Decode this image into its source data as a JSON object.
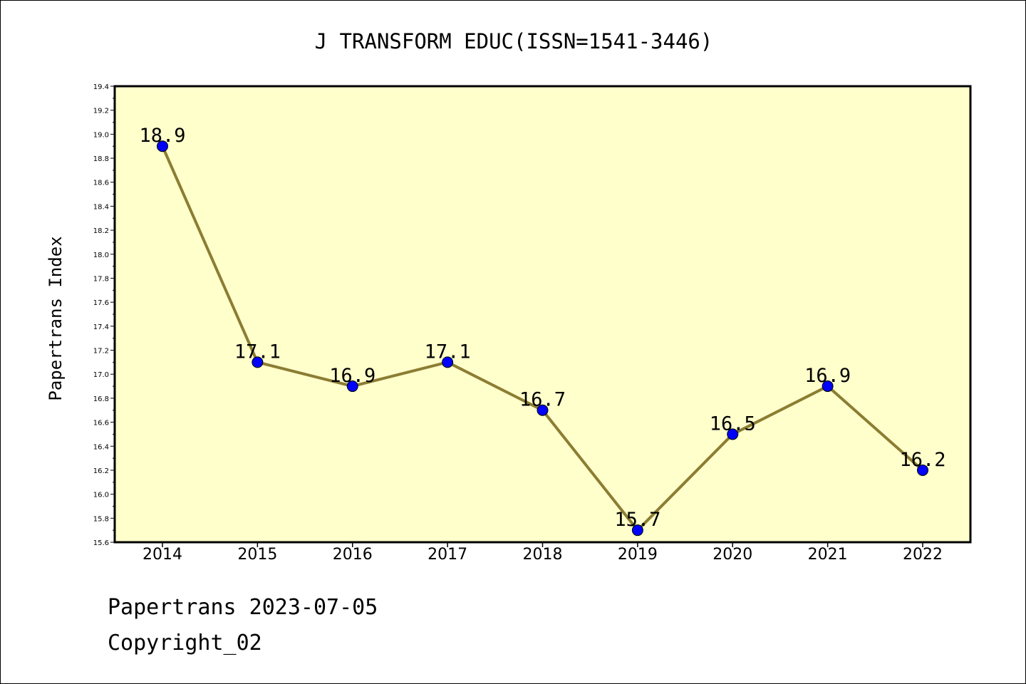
{
  "chart_data": {
    "type": "line",
    "title": "J TRANSFORM EDUC(ISSN=1541-3446)",
    "xlabel": "",
    "ylabel": "Papertrans Index",
    "categories": [
      "2014",
      "2015",
      "2016",
      "2017",
      "2018",
      "2019",
      "2020",
      "2021",
      "2022"
    ],
    "series": [
      {
        "values": [
          18.9,
          17.1,
          16.9,
          17.1,
          16.7,
          15.7,
          16.5,
          16.9,
          16.2
        ]
      }
    ],
    "data_labels": [
      "18.9",
      "17.1",
      "16.9",
      "17.1",
      "16.7",
      "15.7",
      "16.5",
      "16.9",
      "16.2"
    ],
    "ylim": [
      15.6,
      19.4
    ],
    "yticks": [
      "15.6",
      "15.8",
      "16.0",
      "16.2",
      "16.4",
      "16.6",
      "16.8",
      "17.0",
      "17.2",
      "17.4",
      "17.6",
      "17.8",
      "18.0",
      "18.2",
      "18.4",
      "18.6",
      "18.8",
      "19.0",
      "19.2",
      "19.4"
    ],
    "grid": false,
    "legend": "none",
    "colors": {
      "plot_background": "#ffffcc",
      "line": "#8b7d32",
      "marker": "#0000ff"
    }
  },
  "footer": {
    "line1": "Papertrans 2023-07-05",
    "line2": "Copyright_02"
  }
}
